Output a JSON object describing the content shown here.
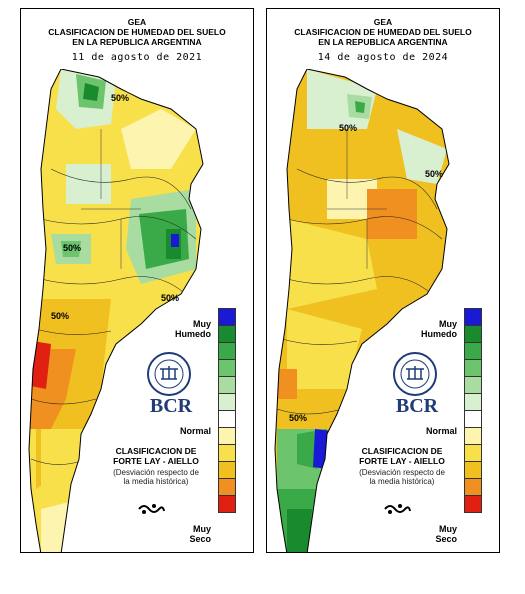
{
  "panels": [
    {
      "org": "GEA",
      "title_line1": "CLASIFICACION DE HUMEDAD DEL SUELO",
      "title_line2": "EN LA REPUBLICA ARGENTINA",
      "date": "11 de agosto de 2021",
      "contour_labels": [
        "50%",
        "50%",
        "50%",
        "50%"
      ]
    },
    {
      "org": "GEA",
      "title_line1": "CLASIFICACION DE HUMEDAD DEL SUELO",
      "title_line2": "EN LA REPUBLICA ARGENTINA",
      "date": "14 de agosto de 2024",
      "contour_labels": [
        "50%",
        "50%",
        "50%"
      ]
    }
  ],
  "legend": {
    "wet_label_1": "Muy",
    "wet_label_2": "Humedo",
    "normal_label": "Normal",
    "dry_label_1": "Muy",
    "dry_label_2": "Seco",
    "colors": [
      "#1a1ad6",
      "#1a8a2e",
      "#3aaa48",
      "#6cc46c",
      "#a8dca0",
      "#d8f0d0",
      "#ffffff",
      "#fdf4b0",
      "#f7e04a",
      "#f0c020",
      "#f09020",
      "#e02010"
    ],
    "brand": "BCR",
    "class_line1": "CLASIFICACION DE",
    "class_line2": "FORTE LAY - AIELLO",
    "note_line1": "(Desviación respecto de",
    "note_line2": "la media histórica)"
  }
}
